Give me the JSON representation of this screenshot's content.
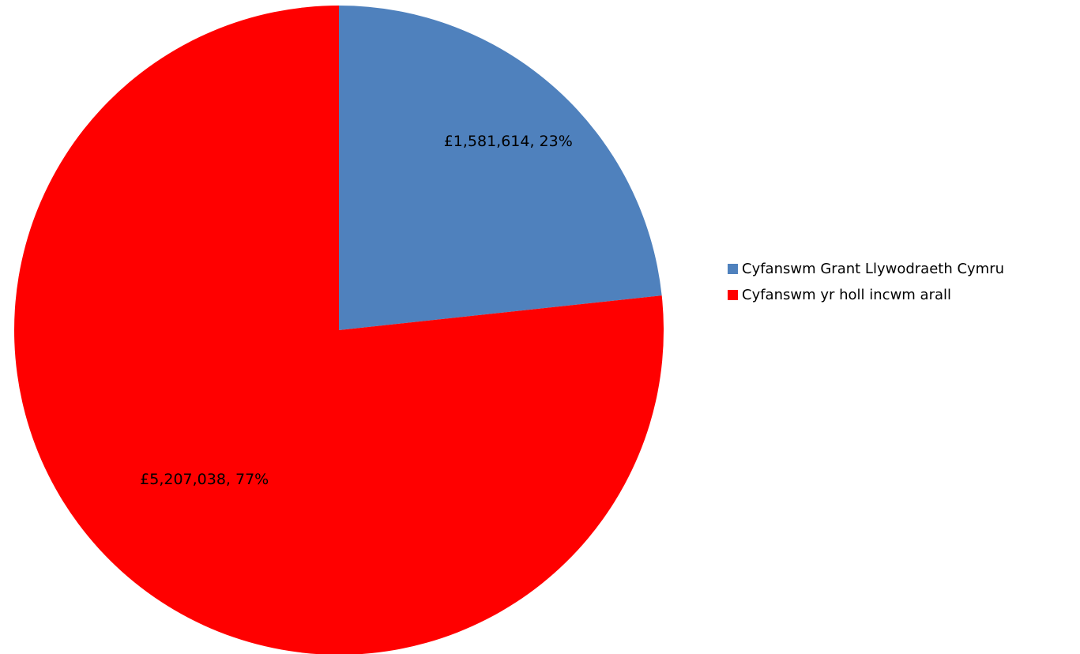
{
  "chart_data": {
    "type": "pie",
    "title": "",
    "legend_position": "right",
    "slices": [
      {
        "label": "Cyfanswm Grant Llywodraeth Cymru",
        "value": 1581614,
        "percent": 23,
        "data_label": "£1,581,614, 23%",
        "color": "#4F81BD"
      },
      {
        "label": "Cyfanswm yr holl incwm arall",
        "value": 5207038,
        "percent": 77,
        "data_label": "£5,207,038, 77%",
        "color": "#FF0000"
      }
    ]
  },
  "legend": {
    "items": [
      {
        "label": "Cyfanswm Grant Llywodraeth Cymru",
        "color": "#4F81BD"
      },
      {
        "label": "Cyfanswm yr holl incwm arall",
        "color": "#FF0000"
      }
    ]
  }
}
